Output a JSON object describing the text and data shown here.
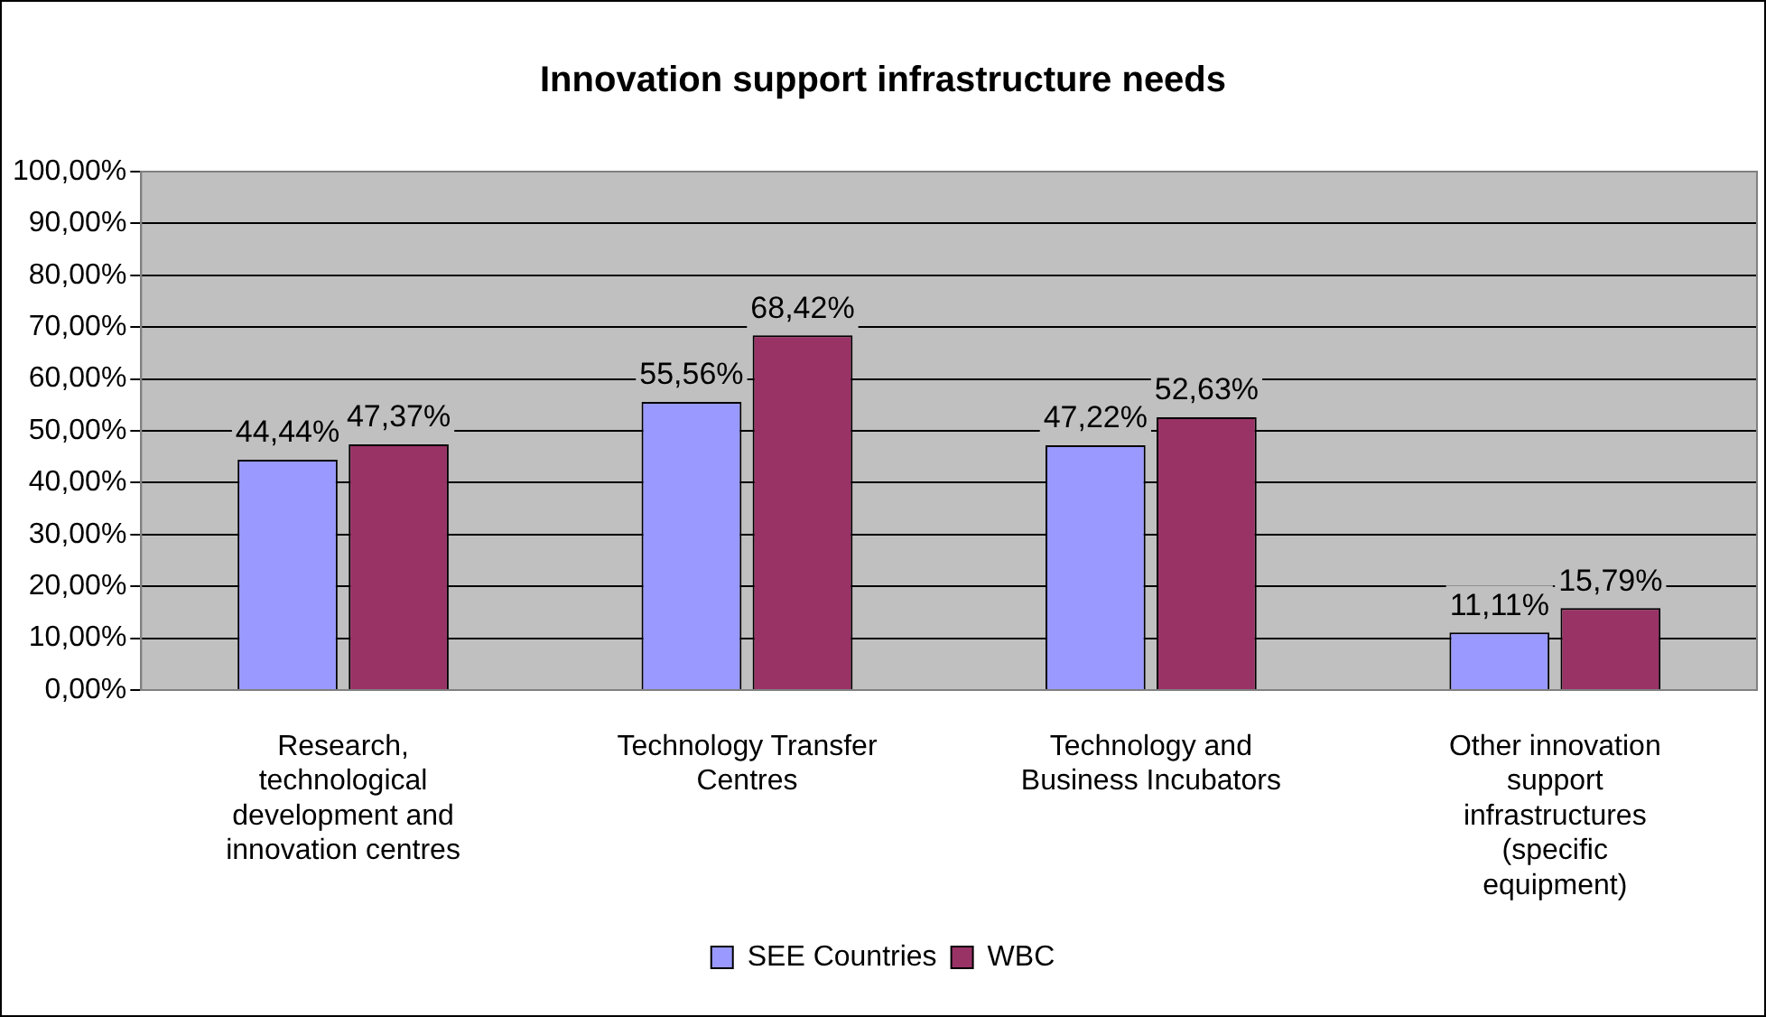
{
  "chart_data": {
    "type": "bar",
    "title": "Innovation support infrastructure needs",
    "categories": [
      "Research, technological development and innovation centres",
      "Technology Transfer Centres",
      "Technology and Business Incubators",
      "Other innovation support infrastructures (specific equipment)"
    ],
    "series": [
      {
        "name": "SEE Countries",
        "color": "#9999ff",
        "values": [
          44.44,
          55.56,
          47.22,
          11.11
        ],
        "value_labels": [
          "44,44%",
          "55,56%",
          "47,22%",
          "11,11%"
        ]
      },
      {
        "name": "WBC",
        "color": "#993366",
        "values": [
          47.37,
          68.42,
          52.63,
          15.79
        ],
        "value_labels": [
          "47,37%",
          "68,42%",
          "52,63%",
          "15,79%"
        ]
      }
    ],
    "ylim": [
      0,
      100
    ],
    "yticks": [
      {
        "value": 0,
        "label": "0,00%"
      },
      {
        "value": 10,
        "label": "10,00%"
      },
      {
        "value": 20,
        "label": "20,00%"
      },
      {
        "value": 30,
        "label": "30,00%"
      },
      {
        "value": 40,
        "label": "40,00%"
      },
      {
        "value": 50,
        "label": "50,00%"
      },
      {
        "value": 60,
        "label": "60,00%"
      },
      {
        "value": 70,
        "label": "70,00%"
      },
      {
        "value": 80,
        "label": "80,00%"
      },
      {
        "value": 90,
        "label": "90,00%"
      },
      {
        "value": 100,
        "label": "100,00%"
      }
    ],
    "grid": "y",
    "legend": "bottom"
  }
}
